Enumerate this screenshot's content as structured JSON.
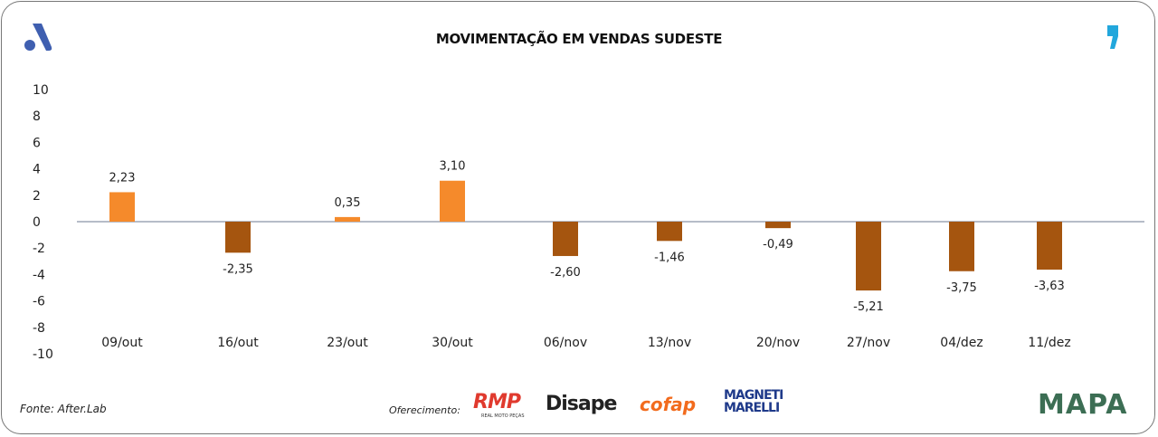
{
  "title": "MOVIMENTAÇÃO EM VENDAS SUDESTE",
  "source": "Fonte: After.Lab",
  "sponsor_label": "Oferecimento:",
  "sponsors": [
    "RMP",
    "REAL MOTO PEÇAS",
    "Disape",
    "cofap",
    "MAGNETI",
    "MARELLI"
  ],
  "brand_logo": "MAPA",
  "colors": {
    "positive": "#F58A2B",
    "negative": "#A5550F",
    "left_logo": "#3F5FB0",
    "right_logo": "#22A7DC"
  },
  "chart_data": {
    "type": "bar",
    "title": "MOVIMENTAÇÃO EM VENDAS SUDESTE",
    "categories": [
      "09/out",
      "16/out",
      "23/out",
      "30/out",
      "06/nov",
      "13/nov",
      "20/nov",
      "27/nov",
      "04/dez",
      "11/dez"
    ],
    "values": [
      2.23,
      -2.35,
      0.35,
      3.1,
      -2.6,
      -1.46,
      -0.49,
      -5.21,
      -3.75,
      -3.63
    ],
    "data_labels": [
      "2,23",
      "-2,35",
      "0,35",
      "3,10",
      "-2,60",
      "-1,46",
      "-0,49",
      "-5,21",
      "-3,75",
      "-3,63"
    ],
    "ylim": [
      -10,
      10
    ],
    "yticks": [
      "10",
      "8",
      "6",
      "4",
      "2",
      "0",
      "-2",
      "-4",
      "-6",
      "-8",
      "-10"
    ],
    "grid": false,
    "legend": "none"
  }
}
